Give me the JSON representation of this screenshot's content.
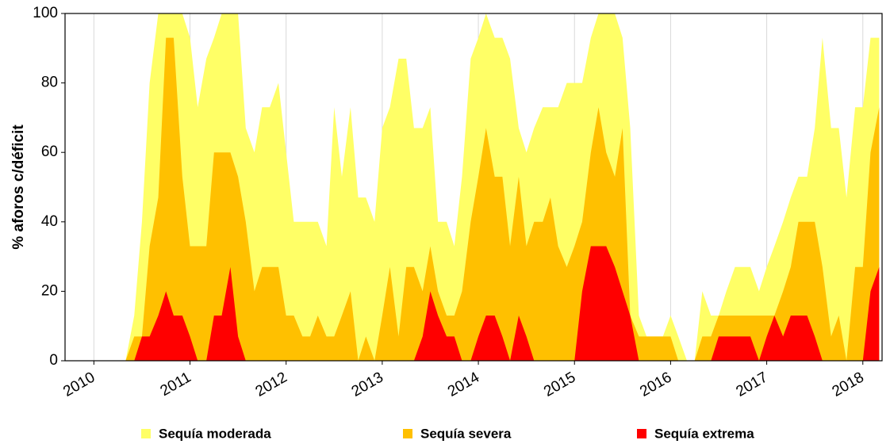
{
  "chart_data": {
    "type": "area",
    "y_label": "% aforos c/déficit",
    "x": [
      2010.25,
      2010.33,
      2010.42,
      2010.5,
      2010.58,
      2010.67,
      2010.75,
      2010.83,
      2010.92,
      2011,
      2011.08,
      2011.17,
      2011.25,
      2011.33,
      2011.42,
      2011.5,
      2011.58,
      2011.67,
      2011.75,
      2011.83,
      2011.92,
      2012,
      2012.08,
      2012.17,
      2012.25,
      2012.33,
      2012.42,
      2012.5,
      2012.58,
      2012.67,
      2012.75,
      2012.83,
      2012.92,
      2013,
      2013.08,
      2013.17,
      2013.25,
      2013.33,
      2013.42,
      2013.5,
      2013.58,
      2013.67,
      2013.75,
      2013.83,
      2013.92,
      2014,
      2014.08,
      2014.17,
      2014.25,
      2014.33,
      2014.42,
      2014.5,
      2014.58,
      2014.67,
      2014.75,
      2014.83,
      2014.92,
      2015,
      2015.08,
      2015.17,
      2015.25,
      2015.33,
      2015.42,
      2015.5,
      2015.58,
      2015.67,
      2015.75,
      2015.83,
      2015.92,
      2016,
      2016.08,
      2016.17,
      2016.25,
      2016.33,
      2016.42,
      2016.5,
      2016.58,
      2016.67,
      2016.75,
      2016.83,
      2016.92,
      2017,
      2017.08,
      2017.17,
      2017.25,
      2017.33,
      2017.42,
      2017.5,
      2017.58,
      2017.67,
      2017.75,
      2017.83,
      2017.92,
      2018,
      2018.08,
      2018.17
    ],
    "series": [
      {
        "name": "Sequía moderada",
        "color": "#ffff66",
        "values": [
          0,
          0,
          13,
          40,
          80,
          100,
          100,
          100,
          100,
          93,
          73,
          87,
          93,
          100,
          100,
          100,
          67,
          60,
          73,
          73,
          80,
          60,
          40,
          40,
          40,
          40,
          33,
          73,
          53,
          73,
          47,
          47,
          40,
          67,
          73,
          87,
          87,
          67,
          67,
          73,
          40,
          40,
          33,
          53,
          87,
          93,
          100,
          93,
          93,
          87,
          67,
          60,
          67,
          73,
          73,
          73,
          80,
          80,
          80,
          93,
          100,
          100,
          100,
          93,
          67,
          13,
          7,
          7,
          7,
          13,
          7,
          0,
          0,
          20,
          13,
          13,
          20,
          27,
          27,
          27,
          20,
          27,
          33,
          40,
          47,
          53,
          53,
          67,
          93,
          67,
          67,
          47,
          73,
          73,
          93,
          93
        ]
      },
      {
        "name": "Sequía severa",
        "color": "#ffc000",
        "values": [
          0,
          0,
          7,
          7,
          33,
          47,
          93,
          93,
          53,
          33,
          33,
          33,
          60,
          60,
          60,
          53,
          40,
          20,
          27,
          27,
          27,
          13,
          13,
          7,
          7,
          13,
          7,
          7,
          13,
          20,
          0,
          7,
          0,
          13,
          27,
          7,
          27,
          27,
          20,
          33,
          20,
          13,
          13,
          20,
          40,
          53,
          67,
          53,
          53,
          33,
          53,
          33,
          40,
          40,
          47,
          33,
          27,
          33,
          40,
          60,
          73,
          60,
          53,
          67,
          13,
          7,
          7,
          7,
          7,
          7,
          0,
          0,
          0,
          7,
          7,
          13,
          13,
          13,
          13,
          13,
          13,
          13,
          13,
          20,
          27,
          40,
          40,
          40,
          27,
          7,
          13,
          0,
          27,
          27,
          60,
          73
        ]
      },
      {
        "name": "Sequía extrema",
        "color": "#ff0000",
        "values": [
          0,
          0,
          0,
          7,
          7,
          13,
          20,
          13,
          13,
          7,
          0,
          0,
          13,
          13,
          27,
          7,
          0,
          0,
          0,
          0,
          0,
          0,
          0,
          0,
          0,
          0,
          0,
          0,
          0,
          0,
          0,
          0,
          0,
          0,
          0,
          0,
          0,
          0,
          7,
          20,
          13,
          7,
          7,
          0,
          0,
          7,
          13,
          13,
          7,
          0,
          13,
          7,
          0,
          0,
          0,
          0,
          0,
          0,
          20,
          33,
          33,
          33,
          27,
          20,
          13,
          0,
          0,
          0,
          0,
          0,
          0,
          0,
          0,
          0,
          0,
          7,
          7,
          7,
          7,
          7,
          0,
          7,
          13,
          7,
          13,
          13,
          13,
          7,
          0,
          0,
          0,
          0,
          0,
          0,
          20,
          27
        ]
      }
    ],
    "xlim": [
      2009.7,
      2018.2
    ],
    "xticks": [
      2010,
      2011,
      2012,
      2013,
      2014,
      2015,
      2016,
      2017,
      2018
    ],
    "ylim": [
      0,
      100
    ],
    "yticks": [
      0,
      20,
      40,
      60,
      80,
      100
    ],
    "x_grid": true,
    "legend": "bottom"
  }
}
